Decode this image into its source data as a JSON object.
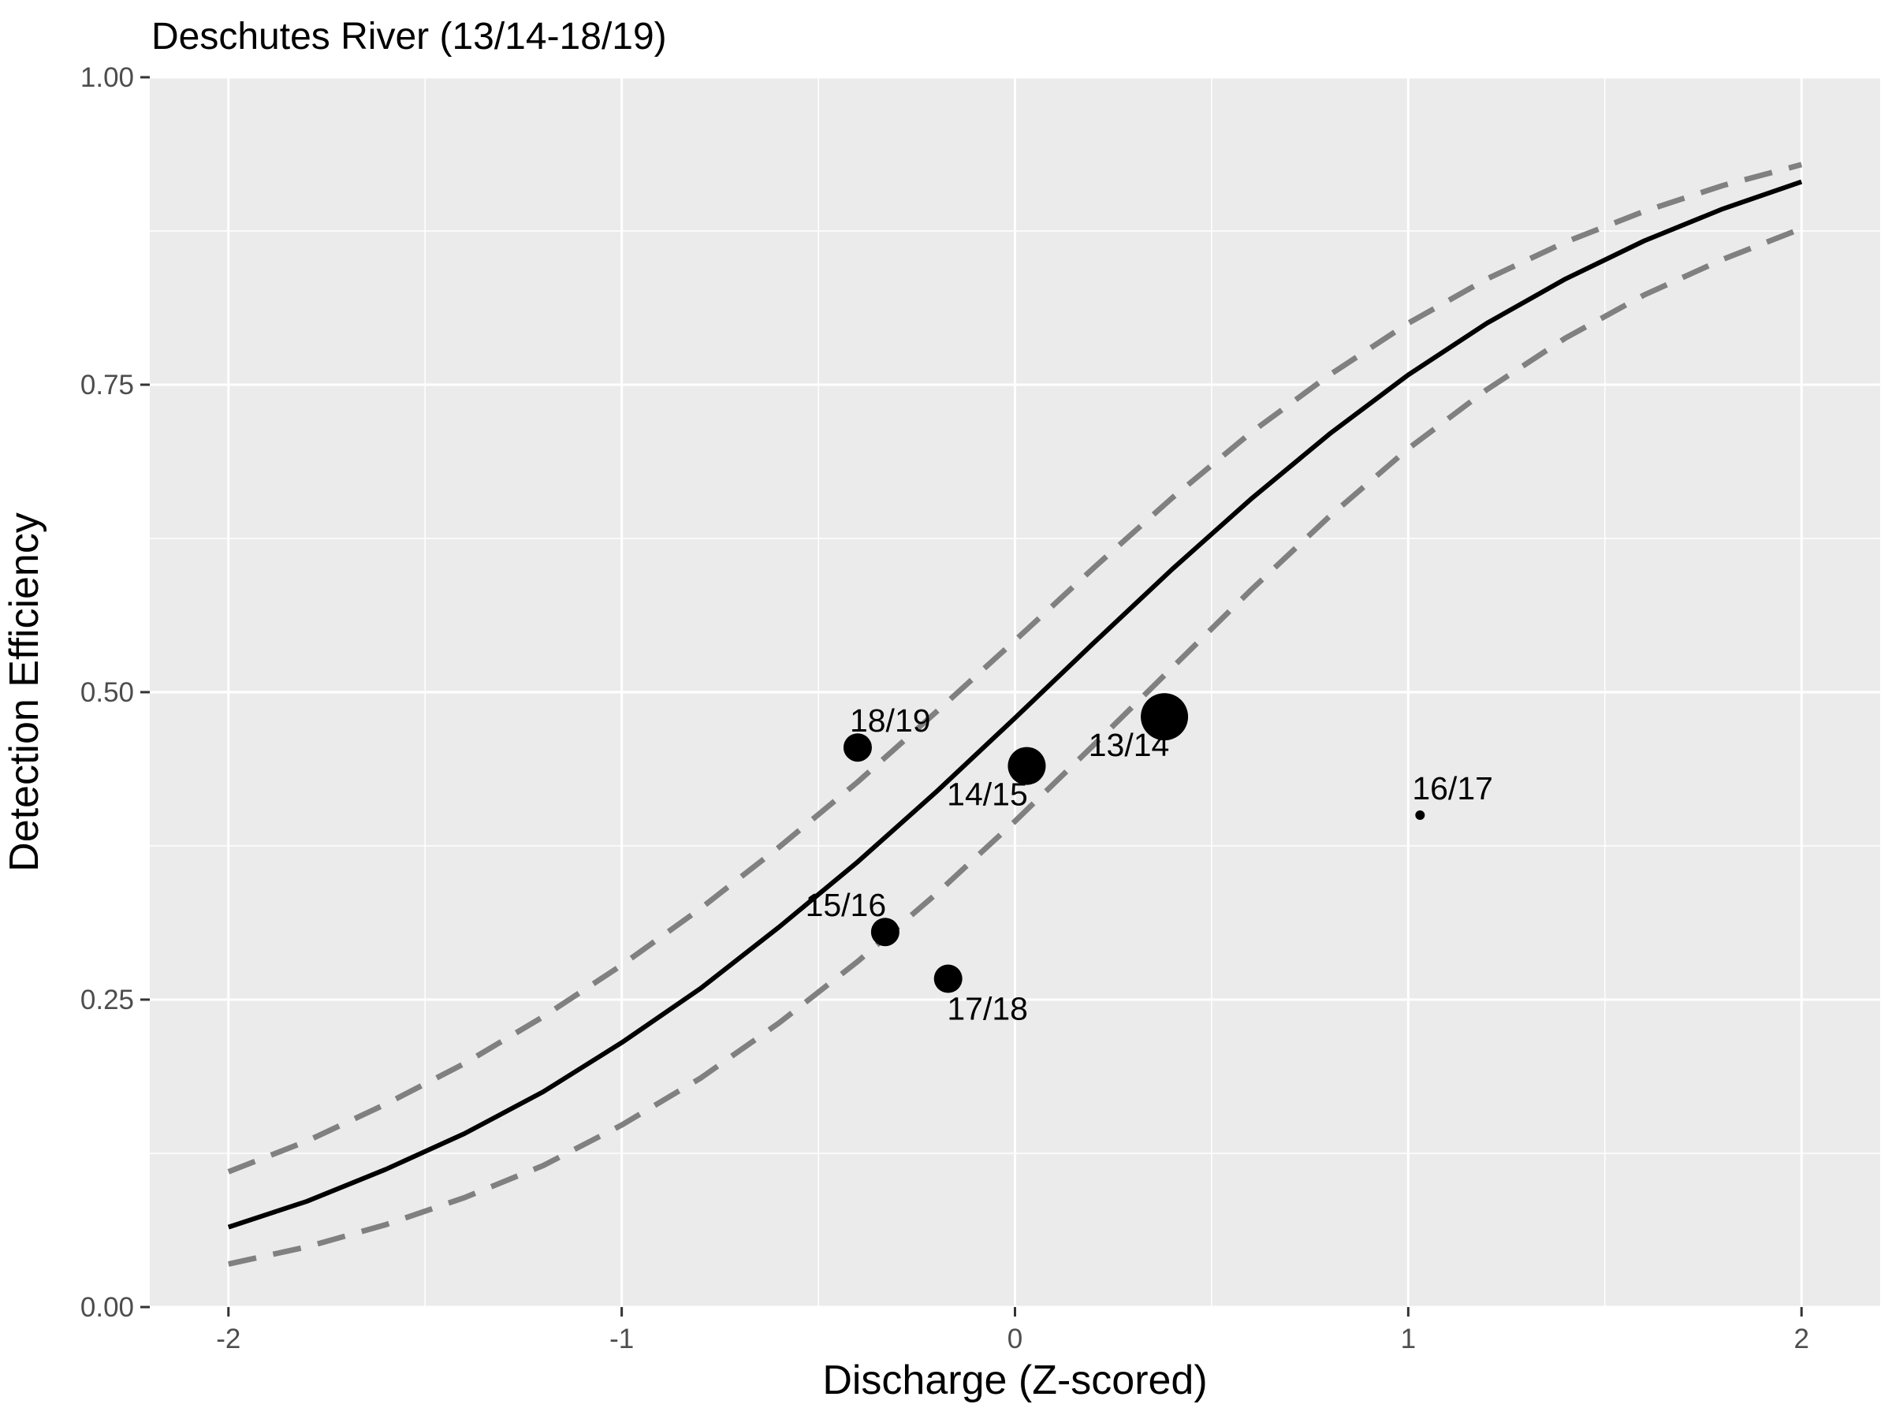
{
  "chart_data": {
    "type": "scatter",
    "title": "Deschutes River (13/14-18/19)",
    "xlabel": "Discharge (Z-scored)",
    "ylabel": "Detection Efficiency",
    "xlim": [
      -2.2,
      2.2
    ],
    "ylim": [
      0,
      1
    ],
    "x_ticks": [
      -2,
      -1,
      0,
      1,
      2
    ],
    "x_tick_labels": [
      "-2",
      "-1",
      "0",
      "1",
      "2"
    ],
    "y_ticks": [
      0,
      0.25,
      0.5,
      0.75,
      1
    ],
    "y_tick_labels": [
      "0.00",
      "0.25",
      "0.50",
      "0.75",
      "1.00"
    ],
    "grid": true,
    "legend": "none",
    "colors": {
      "panel_background": "#ebebeb",
      "grid": "#ffffff",
      "fit_line": "#000000",
      "ci_line": "#808080",
      "points": "#000000"
    },
    "fit": {
      "x": [
        -2.0,
        -1.8,
        -1.6,
        -1.4,
        -1.2,
        -1.0,
        -0.8,
        -0.6,
        -0.4,
        -0.2,
        0.0,
        0.2,
        0.4,
        0.6,
        0.8,
        1.0,
        1.2,
        1.4,
        1.6,
        1.8,
        2.0
      ],
      "y": [
        0.065,
        0.086,
        0.112,
        0.141,
        0.175,
        0.215,
        0.259,
        0.309,
        0.362,
        0.419,
        0.479,
        0.54,
        0.6,
        0.657,
        0.71,
        0.758,
        0.8,
        0.836,
        0.867,
        0.893,
        0.915
      ]
    },
    "ci_upper": {
      "x": [
        -2.0,
        -1.8,
        -1.6,
        -1.4,
        -1.2,
        -1.0,
        -0.8,
        -0.6,
        -0.4,
        -0.2,
        0.0,
        0.2,
        0.4,
        0.6,
        0.8,
        1.0,
        1.2,
        1.4,
        1.6,
        1.8,
        2.0
      ],
      "y": [
        0.11,
        0.135,
        0.165,
        0.198,
        0.236,
        0.278,
        0.324,
        0.374,
        0.427,
        0.484,
        0.542,
        0.601,
        0.658,
        0.711,
        0.758,
        0.8,
        0.836,
        0.866,
        0.891,
        0.912,
        0.929
      ]
    },
    "ci_lower": {
      "x": [
        -2.0,
        -1.8,
        -1.6,
        -1.4,
        -1.2,
        -1.0,
        -0.8,
        -0.6,
        -0.4,
        -0.2,
        0.0,
        0.2,
        0.4,
        0.6,
        0.8,
        1.0,
        1.2,
        1.4,
        1.6,
        1.8,
        2.0
      ],
      "y": [
        0.035,
        0.049,
        0.067,
        0.089,
        0.115,
        0.148,
        0.186,
        0.231,
        0.281,
        0.336,
        0.395,
        0.457,
        0.52,
        0.583,
        0.643,
        0.698,
        0.746,
        0.788,
        0.823,
        0.852,
        0.877
      ]
    },
    "points": [
      {
        "label": "13/14",
        "x": 0.38,
        "y": 0.48,
        "size": 5
      },
      {
        "label": "14/15",
        "x": 0.03,
        "y": 0.44,
        "size": 4
      },
      {
        "label": "15/16",
        "x": -0.33,
        "y": 0.305,
        "size": 3
      },
      {
        "label": "16/17",
        "x": 1.03,
        "y": 0.4,
        "size": 1
      },
      {
        "label": "17/18",
        "x": -0.17,
        "y": 0.267,
        "size": 3
      },
      {
        "label": "18/19",
        "x": -0.4,
        "y": 0.455,
        "size": 3
      }
    ]
  }
}
